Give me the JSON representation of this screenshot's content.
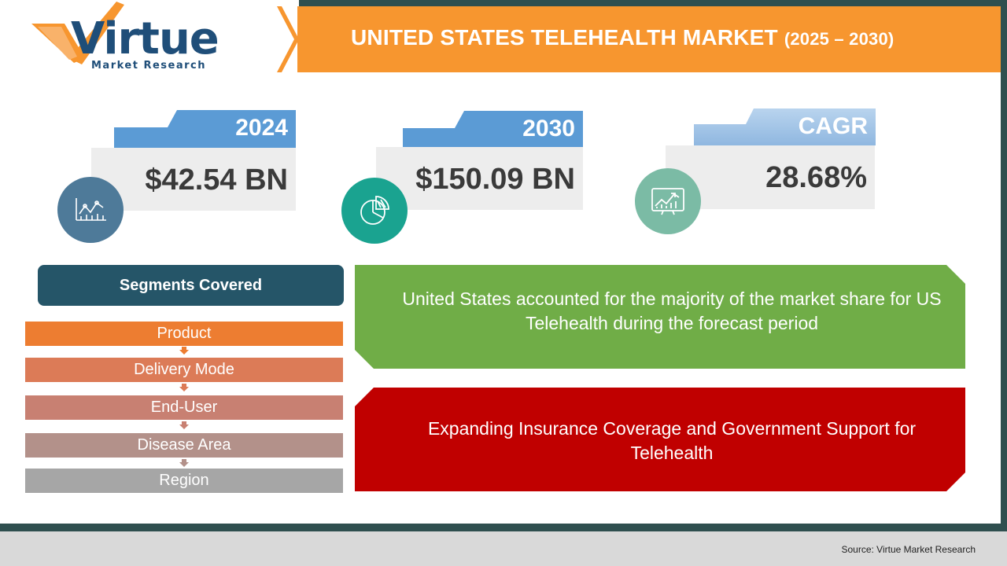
{
  "logo": {
    "word": "Virtue",
    "subtitle": "Market Research"
  },
  "title": {
    "main": "UNITED STATES TELEHEALTH MARKET",
    "years": "(2025 – 2030)"
  },
  "stats": [
    {
      "label": "2024",
      "value": "$42.54 BN",
      "icon": "line-chart-icon",
      "circle_color": "#4e7a99",
      "tab_color": "#5b9bd5"
    },
    {
      "label": "2030",
      "value": "$150.09 BN",
      "icon": "pie-chart-icon",
      "circle_color": "#1aa390",
      "tab_color": "#5b9bd5"
    },
    {
      "label": "CAGR",
      "value": "28.68%",
      "icon": "growth-chart-icon",
      "circle_color": "#7bbba5",
      "tab_color": "#9dc3e6"
    }
  ],
  "segments": {
    "heading": "Segments Covered",
    "items": [
      {
        "label": "Product",
        "color": "#ed7d31"
      },
      {
        "label": "Delivery Mode",
        "color": "#dc7b57"
      },
      {
        "label": "End-User",
        "color": "#c88072"
      },
      {
        "label": "Disease Area",
        "color": "#b3918a"
      },
      {
        "label": "Region",
        "color": "#a6a6a6"
      }
    ]
  },
  "insights": [
    {
      "text": "United States accounted for the majority of the market share for US Telehealth during the forecast period",
      "color": "#70ad47"
    },
    {
      "text": "Expanding Insurance Coverage and Government Support for Telehealth",
      "color": "#c00000"
    }
  ],
  "footer": {
    "source": "Source: Virtue Market Research"
  }
}
